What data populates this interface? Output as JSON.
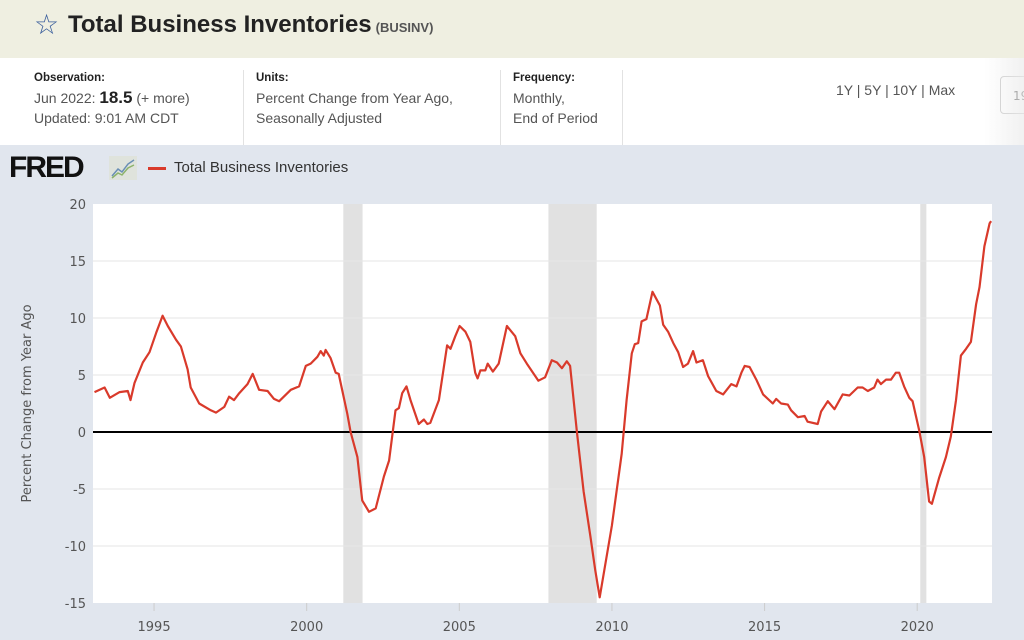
{
  "header": {
    "title": "Total Business Inventories",
    "series_id": "(BUSINV)",
    "star_icon": "star-outline-icon"
  },
  "observation": {
    "label": "Observation:",
    "date": "Jun 2022:",
    "value": "18.5",
    "more": "(+ more)",
    "updated": "Updated: 9:01 AM CDT"
  },
  "units": {
    "label": "Units:",
    "line1": "Percent Change from Year Ago,",
    "line2": "Seasonally Adjusted"
  },
  "frequency": {
    "label": "Frequency:",
    "line1": "Monthly,",
    "line2": "End of Period"
  },
  "range_buttons": [
    "1Y",
    "5Y",
    "10Y",
    "Max"
  ],
  "range_separator": "|",
  "date_input_value": "19",
  "logo": "FRED",
  "chart_data": {
    "type": "line",
    "title": "",
    "ylabel": "Percent Change from Year Ago",
    "xlabel": "",
    "xlim": [
      1993.0,
      2022.45
    ],
    "ylim": [
      -15,
      20
    ],
    "yticks": [
      20,
      15,
      10,
      5,
      0,
      -5,
      -10,
      -15
    ],
    "xticks": [
      1995,
      2000,
      2005,
      2010,
      2015,
      2020
    ],
    "grid": true,
    "legend": "top-left",
    "line_color": "#d93a2b",
    "recession_shading": [
      [
        2001.2,
        2001.83
      ],
      [
        2007.92,
        2009.5
      ],
      [
        2020.1,
        2020.3
      ]
    ],
    "series": [
      {
        "name": "Total Business Inventories",
        "points": [
          [
            1993.05,
            3.5
          ],
          [
            1993.38,
            3.9
          ],
          [
            1993.55,
            3.0
          ],
          [
            1993.87,
            3.5
          ],
          [
            1994.14,
            3.6
          ],
          [
            1994.23,
            2.8
          ],
          [
            1994.36,
            4.3
          ],
          [
            1994.63,
            6.1
          ],
          [
            1994.85,
            7.0
          ],
          [
            1995.07,
            8.7
          ],
          [
            1995.28,
            10.2
          ],
          [
            1995.45,
            9.3
          ],
          [
            1995.72,
            8.1
          ],
          [
            1995.88,
            7.5
          ],
          [
            1996.1,
            5.5
          ],
          [
            1996.2,
            3.9
          ],
          [
            1996.48,
            2.5
          ],
          [
            1996.86,
            1.9
          ],
          [
            1997.03,
            1.7
          ],
          [
            1997.3,
            2.2
          ],
          [
            1997.46,
            3.1
          ],
          [
            1997.62,
            2.8
          ],
          [
            1997.79,
            3.4
          ],
          [
            1998.06,
            4.2
          ],
          [
            1998.23,
            5.1
          ],
          [
            1998.44,
            3.7
          ],
          [
            1998.72,
            3.6
          ],
          [
            1998.93,
            2.9
          ],
          [
            1999.1,
            2.7
          ],
          [
            1999.48,
            3.7
          ],
          [
            1999.75,
            4.0
          ],
          [
            1999.97,
            5.8
          ],
          [
            2000.13,
            6.0
          ],
          [
            2000.35,
            6.6
          ],
          [
            2000.46,
            7.1
          ],
          [
            2000.56,
            6.7
          ],
          [
            2000.62,
            7.2
          ],
          [
            2000.78,
            6.5
          ],
          [
            2000.95,
            5.2
          ],
          [
            2001.05,
            5.1
          ],
          [
            2001.33,
            1.6
          ],
          [
            2001.44,
            0.0
          ],
          [
            2001.66,
            -2.2
          ],
          [
            2001.82,
            -6.0
          ],
          [
            2002.04,
            -7.0
          ],
          [
            2002.26,
            -6.7
          ],
          [
            2002.53,
            -3.9
          ],
          [
            2002.7,
            -2.5
          ],
          [
            2002.91,
            1.9
          ],
          [
            2003.02,
            2.1
          ],
          [
            2003.13,
            3.4
          ],
          [
            2003.27,
            4.0
          ],
          [
            2003.4,
            2.8
          ],
          [
            2003.67,
            0.7
          ],
          [
            2003.84,
            1.1
          ],
          [
            2003.95,
            0.7
          ],
          [
            2004.05,
            0.8
          ],
          [
            2004.33,
            2.8
          ],
          [
            2004.6,
            7.6
          ],
          [
            2004.71,
            7.3
          ],
          [
            2004.87,
            8.4
          ],
          [
            2005.01,
            9.3
          ],
          [
            2005.2,
            8.8
          ],
          [
            2005.36,
            7.9
          ],
          [
            2005.52,
            5.2
          ],
          [
            2005.6,
            4.7
          ],
          [
            2005.69,
            5.4
          ],
          [
            2005.85,
            5.4
          ],
          [
            2005.93,
            6.0
          ],
          [
            2006.1,
            5.3
          ],
          [
            2006.29,
            6.0
          ],
          [
            2006.56,
            9.3
          ],
          [
            2006.83,
            8.4
          ],
          [
            2007.0,
            6.9
          ],
          [
            2007.21,
            6.0
          ],
          [
            2007.59,
            4.5
          ],
          [
            2007.81,
            4.8
          ],
          [
            2008.03,
            6.3
          ],
          [
            2008.2,
            6.1
          ],
          [
            2008.36,
            5.6
          ],
          [
            2008.52,
            6.2
          ],
          [
            2008.63,
            5.8
          ],
          [
            2008.85,
            0.1
          ],
          [
            2009.07,
            -5.2
          ],
          [
            2009.29,
            -9.1
          ],
          [
            2009.45,
            -12.1
          ],
          [
            2009.6,
            -14.5
          ],
          [
            2010.0,
            -8.2
          ],
          [
            2010.32,
            -1.9
          ],
          [
            2010.48,
            2.8
          ],
          [
            2010.65,
            6.9
          ],
          [
            2010.75,
            7.7
          ],
          [
            2010.86,
            7.8
          ],
          [
            2010.97,
            9.7
          ],
          [
            2011.13,
            9.9
          ],
          [
            2011.33,
            12.3
          ],
          [
            2011.57,
            11.1
          ],
          [
            2011.68,
            9.4
          ],
          [
            2011.84,
            8.8
          ],
          [
            2012.01,
            7.8
          ],
          [
            2012.17,
            7.0
          ],
          [
            2012.33,
            5.7
          ],
          [
            2012.49,
            6.0
          ],
          [
            2012.66,
            7.1
          ],
          [
            2012.77,
            6.1
          ],
          [
            2012.98,
            6.3
          ],
          [
            2013.15,
            4.9
          ],
          [
            2013.42,
            3.6
          ],
          [
            2013.64,
            3.3
          ],
          [
            2013.91,
            4.2
          ],
          [
            2014.08,
            4.0
          ],
          [
            2014.24,
            5.2
          ],
          [
            2014.35,
            5.8
          ],
          [
            2014.51,
            5.7
          ],
          [
            2014.73,
            4.6
          ],
          [
            2014.95,
            3.3
          ],
          [
            2015.27,
            2.5
          ],
          [
            2015.38,
            2.9
          ],
          [
            2015.54,
            2.5
          ],
          [
            2015.76,
            2.4
          ],
          [
            2015.87,
            1.9
          ],
          [
            2016.09,
            1.3
          ],
          [
            2016.31,
            1.4
          ],
          [
            2016.41,
            0.9
          ],
          [
            2016.74,
            0.7
          ],
          [
            2016.85,
            1.8
          ],
          [
            2017.07,
            2.7
          ],
          [
            2017.29,
            2.0
          ],
          [
            2017.56,
            3.3
          ],
          [
            2017.78,
            3.2
          ],
          [
            2018.05,
            3.9
          ],
          [
            2018.21,
            3.9
          ],
          [
            2018.38,
            3.6
          ],
          [
            2018.59,
            3.9
          ],
          [
            2018.7,
            4.6
          ],
          [
            2018.81,
            4.2
          ],
          [
            2018.98,
            4.6
          ],
          [
            2019.14,
            4.6
          ],
          [
            2019.3,
            5.2
          ],
          [
            2019.41,
            5.2
          ],
          [
            2019.57,
            4.0
          ],
          [
            2019.74,
            3.0
          ],
          [
            2019.85,
            2.7
          ],
          [
            2020.07,
            0.1
          ],
          [
            2020.23,
            -2.2
          ],
          [
            2020.39,
            -6.1
          ],
          [
            2020.48,
            -6.3
          ],
          [
            2020.72,
            -4.0
          ],
          [
            2020.94,
            -2.2
          ],
          [
            2021.1,
            -0.4
          ],
          [
            2021.27,
            2.8
          ],
          [
            2021.43,
            6.7
          ],
          [
            2021.6,
            7.3
          ],
          [
            2021.76,
            7.9
          ],
          [
            2021.93,
            11.2
          ],
          [
            2022.04,
            12.7
          ],
          [
            2022.2,
            16.3
          ],
          [
            2022.37,
            18.3
          ],
          [
            2022.42,
            18.5
          ]
        ]
      }
    ]
  }
}
